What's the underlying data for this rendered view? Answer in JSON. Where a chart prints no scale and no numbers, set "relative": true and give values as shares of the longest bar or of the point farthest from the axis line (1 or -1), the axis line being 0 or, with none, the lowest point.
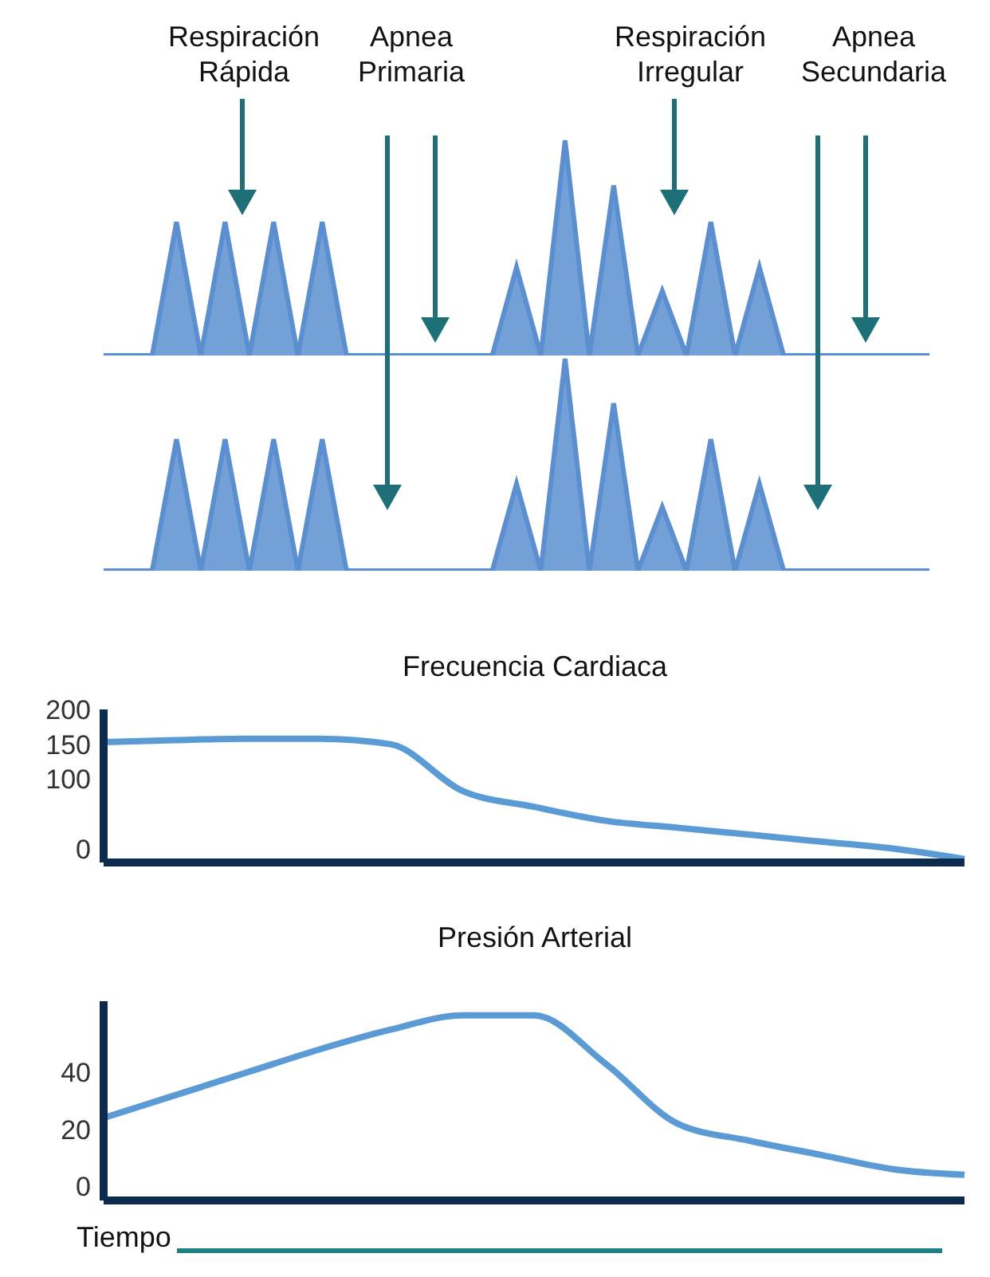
{
  "chart_data": [
    {
      "type": "area",
      "relative": true,
      "tick_labels": false,
      "color": "#5b8fd0",
      "annotations": [
        "Respiración Rápida",
        "Apnea Primaria",
        "Respiración Irregular",
        "Apnea Secundaria"
      ],
      "categories": [
        null,
        null,
        null,
        null,
        null,
        null,
        null,
        null,
        null,
        null,
        null,
        null,
        null,
        null,
        null,
        null,
        null,
        null,
        null,
        null,
        null,
        null,
        null,
        null,
        null,
        null,
        null,
        null,
        null,
        null,
        null,
        null,
        null,
        null,
        null
      ],
      "values": [
        0,
        0,
        0,
        0.62,
        0,
        0.62,
        0,
        0.62,
        0,
        0.62,
        0,
        0,
        0,
        0,
        0,
        0,
        0,
        0.41,
        0,
        1,
        0,
        0.79,
        0,
        0.3,
        0,
        0.62,
        0,
        0.41,
        0,
        0,
        0,
        0,
        0,
        0,
        0
      ]
    },
    {
      "type": "area",
      "relative": true,
      "tick_labels": false,
      "color": "#5b8fd0",
      "categories": [
        null,
        null,
        null,
        null,
        null,
        null,
        null,
        null,
        null,
        null,
        null,
        null,
        null,
        null,
        null,
        null,
        null,
        null,
        null,
        null,
        null,
        null,
        null,
        null,
        null,
        null,
        null,
        null,
        null,
        null,
        null,
        null,
        null,
        null,
        null
      ],
      "values": [
        0,
        0,
        0,
        0.62,
        0,
        0.62,
        0,
        0.62,
        0,
        0.62,
        0,
        0,
        0,
        0,
        0,
        0,
        0,
        0.41,
        0,
        1,
        0,
        0.79,
        0,
        0.3,
        0,
        0.62,
        0,
        0.41,
        0,
        0,
        0,
        0,
        0,
        0,
        0
      ]
    },
    {
      "type": "line",
      "title": "Frecuencia Cardiaca",
      "tick_labels": "y",
      "color": "#5b9bd5",
      "ylim": [
        -20,
        200
      ],
      "yticks": [
        0,
        100,
        150,
        200
      ],
      "categories": [
        null,
        null,
        null,
        null,
        null,
        null,
        null,
        null,
        null,
        null,
        null,
        null,
        null
      ],
      "values": [
        153,
        156,
        158,
        158,
        150,
        83,
        60,
        40,
        30,
        20,
        10,
        0,
        -15
      ]
    },
    {
      "type": "line",
      "title": "Presión Arterial",
      "xlabel": "Tiempo",
      "tick_labels": "y",
      "color": "#5b9bd5",
      "ylim": [
        -5,
        65
      ],
      "yticks": [
        0,
        20,
        40
      ],
      "categories": [
        null,
        null,
        null,
        null,
        null,
        null,
        null,
        null,
        null,
        null,
        null,
        null,
        null
      ],
      "values": [
        24,
        32,
        40,
        48,
        55,
        60,
        60,
        43,
        22,
        16,
        11,
        6,
        4
      ]
    }
  ]
}
